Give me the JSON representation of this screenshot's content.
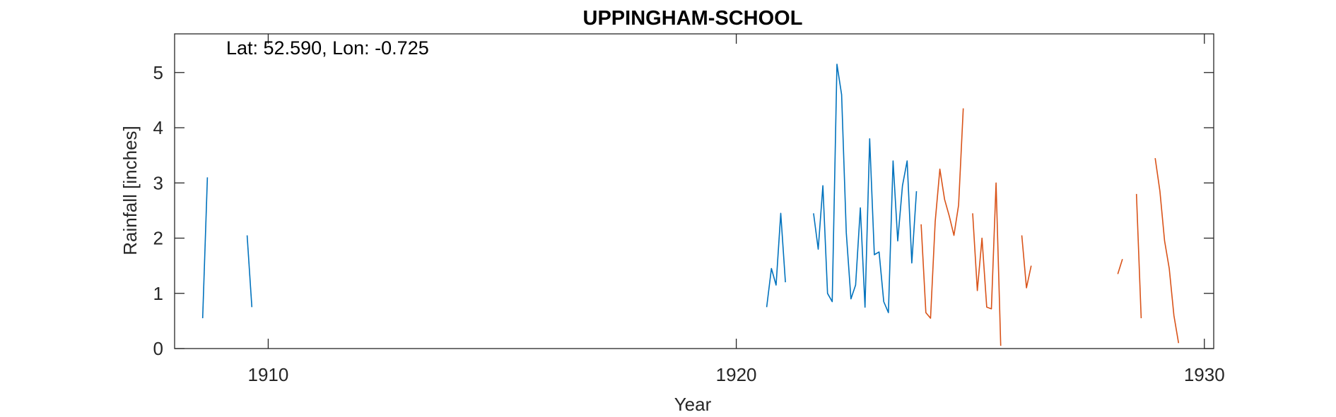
{
  "chart_data": {
    "type": "line",
    "title": "UPPINGHAM-SCHOOL",
    "xlabel": "Year",
    "ylabel": "Rainfall [inches]",
    "annotation": "Lat: 52.590, Lon: -0.725",
    "xlim": [
      1908,
      1930.2
    ],
    "ylim": [
      0,
      5.7
    ],
    "xticks": [
      1910,
      1920,
      1930
    ],
    "yticks": [
      0,
      1,
      2,
      3,
      4,
      5
    ],
    "grid": false,
    "series": [
      {
        "color": "#0072BD",
        "segments": [
          [
            [
              1908.6,
              0.55
            ],
            [
              1908.7,
              3.1
            ]
          ],
          [
            [
              1909.55,
              2.05
            ],
            [
              1909.65,
              0.75
            ]
          ],
          [
            [
              1920.65,
              0.75
            ],
            [
              1920.75,
              1.45
            ],
            [
              1920.85,
              1.15
            ],
            [
              1920.95,
              2.45
            ],
            [
              1921.05,
              1.2
            ]
          ],
          [
            [
              1921.65,
              2.45
            ],
            [
              1921.75,
              1.8
            ],
            [
              1921.85,
              2.95
            ],
            [
              1921.95,
              1.0
            ],
            [
              1922.05,
              0.85
            ],
            [
              1922.15,
              5.15
            ],
            [
              1922.25,
              4.6
            ],
            [
              1922.35,
              2.1
            ],
            [
              1922.45,
              0.9
            ],
            [
              1922.55,
              1.15
            ],
            [
              1922.65,
              2.55
            ],
            [
              1922.75,
              0.75
            ],
            [
              1922.85,
              3.8
            ],
            [
              1922.95,
              1.7
            ],
            [
              1923.05,
              1.75
            ],
            [
              1923.15,
              0.85
            ],
            [
              1923.25,
              0.65
            ],
            [
              1923.35,
              3.4
            ],
            [
              1923.45,
              1.95
            ],
            [
              1923.55,
              2.95
            ],
            [
              1923.65,
              3.4
            ],
            [
              1923.75,
              1.55
            ],
            [
              1923.85,
              2.85
            ]
          ]
        ]
      },
      {
        "color": "#D95319",
        "segments": [
          [
            [
              1923.95,
              2.25
            ],
            [
              1924.05,
              0.65
            ],
            [
              1924.15,
              0.55
            ],
            [
              1924.25,
              2.3
            ],
            [
              1924.35,
              3.25
            ],
            [
              1924.45,
              2.7
            ],
            [
              1924.55,
              2.4
            ],
            [
              1924.65,
              2.05
            ],
            [
              1924.75,
              2.6
            ],
            [
              1924.85,
              4.35
            ]
          ],
          [
            [
              1925.05,
              2.45
            ],
            [
              1925.15,
              1.05
            ],
            [
              1925.25,
              2.0
            ],
            [
              1925.35,
              0.75
            ],
            [
              1925.45,
              0.72
            ],
            [
              1925.55,
              3.0
            ],
            [
              1925.65,
              0.05
            ]
          ],
          [
            [
              1926.1,
              2.05
            ],
            [
              1926.2,
              1.1
            ],
            [
              1926.3,
              1.5
            ]
          ],
          [
            [
              1928.15,
              1.35
            ],
            [
              1928.25,
              1.62
            ]
          ],
          [
            [
              1928.55,
              2.8
            ],
            [
              1928.65,
              0.55
            ]
          ],
          [
            [
              1928.95,
              3.45
            ],
            [
              1929.05,
              2.85
            ],
            [
              1929.15,
              1.95
            ],
            [
              1929.25,
              1.45
            ],
            [
              1929.35,
              0.6
            ],
            [
              1929.45,
              0.1
            ]
          ]
        ]
      }
    ]
  }
}
